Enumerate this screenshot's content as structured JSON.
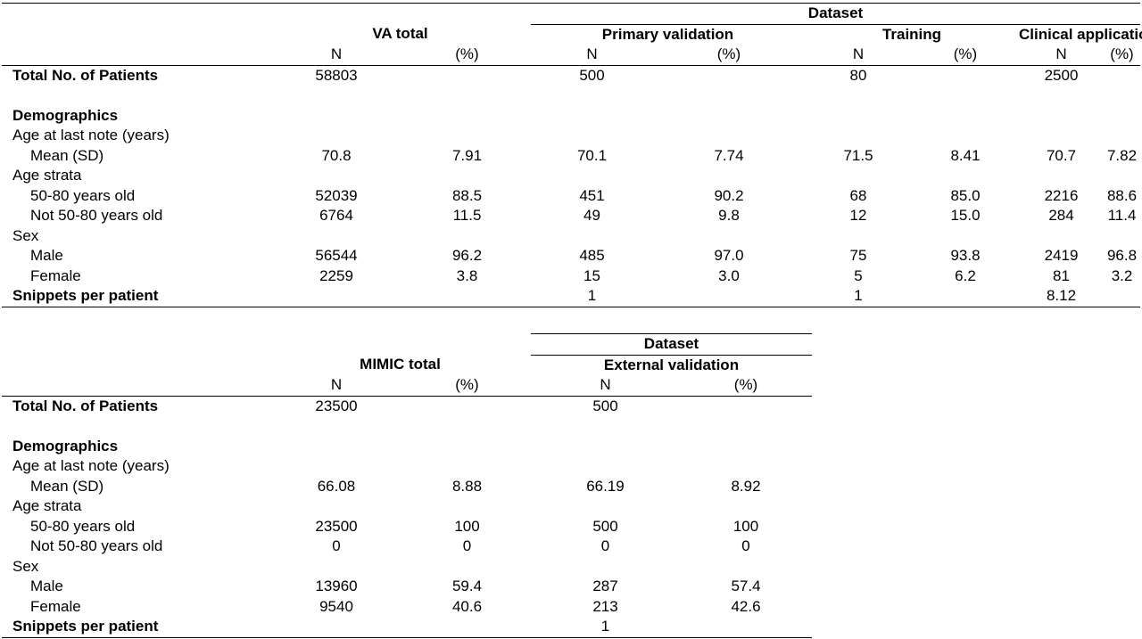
{
  "va": {
    "header": {
      "dataset": "Dataset",
      "va_total": "VA total",
      "primary_validation": "Primary validation",
      "training": "Training",
      "clinical_application": "Clinical application",
      "n": "N",
      "pct": "(%)"
    },
    "rows": {
      "total_label": "Total No. of Patients",
      "total": [
        "58803",
        "",
        "500",
        "",
        "80",
        "",
        "2500",
        ""
      ],
      "demographics": "Demographics",
      "age_label": "Age at last note (years)",
      "mean_label": "Mean (SD)",
      "mean": [
        "70.8",
        "7.91",
        "70.1",
        "7.74",
        "71.5",
        "8.41",
        "70.7",
        "7.82"
      ],
      "strata_label": "Age strata",
      "s1_label": "50-80 years old",
      "s1": [
        "52039",
        "88.5",
        "451",
        "90.2",
        "68",
        "85.0",
        "2216",
        "88.6"
      ],
      "s2_label": "Not 50-80 years old",
      "s2": [
        "6764",
        "11.5",
        "49",
        "9.8",
        "12",
        "15.0",
        "284",
        "11.4"
      ],
      "sex_label": "Sex",
      "male_label": "Male",
      "male": [
        "56544",
        "96.2",
        "485",
        "97.0",
        "75",
        "93.8",
        "2419",
        "96.8"
      ],
      "female_label": "Female",
      "female": [
        "2259",
        "3.8",
        "15",
        "3.0",
        "5",
        "6.2",
        "81",
        "3.2"
      ],
      "snippets_label": "Snippets per patient",
      "snippets": [
        "",
        "",
        "1",
        "",
        "1",
        "",
        "8.12",
        ""
      ]
    }
  },
  "mimic": {
    "header": {
      "dataset": "Dataset",
      "mimic_total": "MIMIC total",
      "external_validation": "External validation",
      "n": "N",
      "pct": "(%)"
    },
    "rows": {
      "total_label": "Total No. of Patients",
      "total": [
        "23500",
        "",
        "500",
        ""
      ],
      "demographics": "Demographics",
      "age_label": "Age at last note (years)",
      "mean_label": "Mean (SD)",
      "mean": [
        "66.08",
        "8.88",
        "66.19",
        "8.92"
      ],
      "strata_label": "Age strata",
      "s1_label": "50-80 years old",
      "s1": [
        "23500",
        "100",
        "500",
        "100"
      ],
      "s2_label": "Not 50-80 years old",
      "s2": [
        "0",
        "0",
        "0",
        "0"
      ],
      "sex_label": "Sex",
      "male_label": "Male",
      "male": [
        "13960",
        "59.4",
        "287",
        "57.4"
      ],
      "female_label": "Female",
      "female": [
        "9540",
        "40.6",
        "213",
        "42.6"
      ],
      "snippets_label": "Snippets per patient",
      "snippets": [
        "",
        "",
        "1",
        ""
      ]
    }
  }
}
